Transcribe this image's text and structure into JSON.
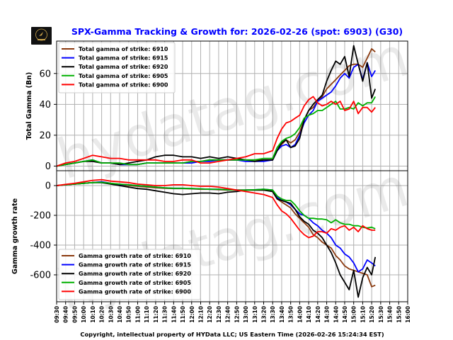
{
  "title": "SPX-Gamma Tracking & Growth for: 2026-02-26 (spot: 6903) (G30)",
  "footer": "Copyright, intellectual property of HYData LLC; US Eastern Time (2026-02-26 15:24:34 EST)",
  "watermark": "hydatag.com",
  "logo_text": "HYDATA",
  "chart_data": [
    {
      "type": "line",
      "ylabel": "Total Gamma (Bn)",
      "ylim": [
        -3,
        81
      ],
      "yticks": [
        0,
        20,
        40,
        60
      ],
      "grid": true,
      "legend_position": "top-left",
      "x": [
        "09:30",
        "09:40",
        "09:50",
        "10:00",
        "10:10",
        "10:20",
        "10:30",
        "10:40",
        "10:50",
        "11:00",
        "11:10",
        "11:20",
        "11:30",
        "11:40",
        "11:50",
        "12:00",
        "12:10",
        "12:20",
        "12:30",
        "12:40",
        "12:50",
        "13:00",
        "13:10",
        "13:20",
        "13:30",
        "13:35",
        "13:40",
        "13:45",
        "13:50",
        "13:55",
        "14:00",
        "14:05",
        "14:10",
        "14:15",
        "14:20",
        "14:25",
        "14:30",
        "14:35",
        "14:40",
        "14:45",
        "14:50",
        "14:55",
        "15:00",
        "15:05",
        "15:10",
        "15:15",
        "15:20",
        "15:24"
      ],
      "series": [
        {
          "name": "Total gamma of strike: 6910",
          "color": "#8B3A0F",
          "values": [
            0,
            1,
            2,
            3,
            4,
            2,
            2,
            1,
            1,
            1,
            2,
            2,
            2,
            2,
            2,
            3,
            3,
            4,
            4,
            4,
            4,
            4,
            4,
            4,
            4,
            12,
            14,
            17,
            15,
            17,
            22,
            30,
            36,
            38,
            42,
            45,
            50,
            53,
            56,
            59,
            62,
            65,
            66,
            66,
            64,
            70,
            76,
            74
          ]
        },
        {
          "name": "Total gamma of strike: 6915",
          "color": "#0000ff",
          "values": [
            0,
            1,
            2,
            3,
            4,
            2,
            2,
            1,
            1,
            1,
            2,
            2,
            2,
            2,
            2,
            2,
            3,
            3,
            4,
            4,
            4,
            3,
            3,
            3,
            4,
            10,
            13,
            14,
            12,
            14,
            20,
            28,
            33,
            36,
            42,
            44,
            46,
            48,
            52,
            57,
            60,
            57,
            64,
            66,
            56,
            67,
            58,
            62
          ]
        },
        {
          "name": "Total gamma of strike: 6920",
          "color": "#000000",
          "values": [
            0,
            1,
            2,
            3,
            3,
            2,
            2,
            1,
            2,
            3,
            4,
            6,
            7,
            7,
            6,
            6,
            5,
            6,
            5,
            6,
            5,
            4,
            3,
            4,
            4,
            10,
            15,
            17,
            12,
            13,
            18,
            30,
            36,
            40,
            43,
            46,
            55,
            62,
            68,
            66,
            71,
            58,
            78,
            66,
            55,
            67,
            44,
            50
          ]
        },
        {
          "name": "Total gamma of strike: 6905",
          "color": "#00b000",
          "values": [
            0,
            1,
            2,
            3,
            4,
            2,
            2,
            2,
            1,
            1,
            2,
            2,
            2,
            2,
            2,
            3,
            3,
            4,
            4,
            4,
            4,
            4,
            4,
            5,
            5,
            12,
            16,
            18,
            19,
            21,
            25,
            31,
            33,
            34,
            36,
            36,
            38,
            40,
            42,
            37,
            37,
            38,
            37,
            41,
            39,
            41,
            41,
            45
          ]
        },
        {
          "name": "Total gamma of strike: 6900",
          "color": "#ff0000",
          "values": [
            0,
            2,
            3,
            5,
            7,
            6,
            5,
            5,
            4,
            4,
            4,
            4,
            3,
            3,
            4,
            4,
            2,
            2,
            3,
            4,
            5,
            6,
            8,
            8,
            10,
            18,
            24,
            28,
            29,
            31,
            33,
            39,
            43,
            45,
            41,
            39,
            40,
            42,
            40,
            42,
            36,
            37,
            42,
            34,
            38,
            38,
            35,
            38
          ]
        }
      ]
    },
    {
      "type": "line",
      "ylabel": "Gamma growth rate",
      "ylim": [
        -781,
        100
      ],
      "yticks": [
        0,
        -200,
        -400,
        -600
      ],
      "grid": true,
      "legend_position": "bottom-left",
      "x": [
        "09:30",
        "09:40",
        "09:50",
        "10:00",
        "10:10",
        "10:20",
        "10:30",
        "10:40",
        "10:50",
        "11:00",
        "11:10",
        "11:20",
        "11:30",
        "11:40",
        "11:50",
        "12:00",
        "12:10",
        "12:20",
        "12:30",
        "12:40",
        "12:50",
        "13:00",
        "13:10",
        "13:20",
        "13:30",
        "13:35",
        "13:40",
        "13:45",
        "13:50",
        "13:55",
        "14:00",
        "14:05",
        "14:10",
        "14:15",
        "14:20",
        "14:25",
        "14:30",
        "14:35",
        "14:40",
        "14:45",
        "14:50",
        "14:55",
        "15:00",
        "15:05",
        "15:10",
        "15:15",
        "15:20",
        "15:24"
      ],
      "xticks": [
        "09:30",
        "09:40",
        "09:50",
        "10:00",
        "10:10",
        "10:20",
        "10:30",
        "10:40",
        "10:50",
        "11:00",
        "11:10",
        "11:20",
        "11:30",
        "11:40",
        "11:50",
        "12:00",
        "12:10",
        "12:20",
        "12:30",
        "12:40",
        "12:50",
        "13:00",
        "13:10",
        "13:20",
        "13:30",
        "13:40",
        "13:50",
        "14:00",
        "14:10",
        "14:20",
        "14:30",
        "14:40",
        "14:50",
        "15:00",
        "15:10",
        "15:20",
        "15:30",
        "15:40",
        "15:50",
        "16:00"
      ],
      "series": [
        {
          "name": "Gamma growth rate of strike: 6910",
          "color": "#8B3A0F",
          "values": [
            0,
            5,
            10,
            15,
            20,
            25,
            15,
            5,
            0,
            -5,
            -10,
            -15,
            -18,
            -20,
            -20,
            -22,
            -25,
            -25,
            -28,
            -30,
            -30,
            -30,
            -30,
            -30,
            -40,
            -90,
            -110,
            -130,
            -150,
            -190,
            -220,
            -250,
            -280,
            -330,
            -350,
            -380,
            -400,
            -420,
            -470,
            -500,
            -540,
            -560,
            -570,
            -580,
            -590,
            -600,
            -680,
            -670
          ]
        },
        {
          "name": "Gamma growth rate of strike: 6915",
          "color": "#0000ff",
          "values": [
            0,
            5,
            10,
            15,
            20,
            25,
            15,
            8,
            5,
            0,
            -5,
            -10,
            -15,
            -18,
            -18,
            -20,
            -22,
            -25,
            -25,
            -28,
            -30,
            -30,
            -28,
            -25,
            -30,
            -80,
            -100,
            -110,
            -130,
            -160,
            -190,
            -200,
            -220,
            -250,
            -270,
            -300,
            -320,
            -350,
            -400,
            -420,
            -460,
            -480,
            -520,
            -580,
            -560,
            -500,
            -520,
            -540
          ]
        },
        {
          "name": "Gamma growth rate of strike: 6920",
          "color": "#000000",
          "values": [
            0,
            5,
            10,
            15,
            20,
            20,
            10,
            0,
            -10,
            -20,
            -25,
            -35,
            -45,
            -55,
            -60,
            -55,
            -50,
            -50,
            -55,
            -45,
            -40,
            -30,
            -30,
            -30,
            -40,
            -90,
            -100,
            -110,
            -120,
            -160,
            -210,
            -240,
            -260,
            -300,
            -320,
            -350,
            -400,
            -450,
            -520,
            -600,
            -650,
            -700,
            -570,
            -750,
            -620,
            -550,
            -600,
            -480
          ]
        },
        {
          "name": "Gamma growth rate of strike: 6905",
          "color": "#00b000",
          "values": [
            0,
            5,
            10,
            15,
            20,
            22,
            15,
            10,
            5,
            0,
            -5,
            -10,
            -15,
            -18,
            -18,
            -20,
            -22,
            -25,
            -25,
            -28,
            -30,
            -30,
            -28,
            -25,
            -30,
            -70,
            -90,
            -100,
            -100,
            -130,
            -170,
            -200,
            -220,
            -220,
            -225,
            -225,
            -230,
            -250,
            -230,
            -250,
            -260,
            -260,
            -270,
            -270,
            -280,
            -285,
            -280,
            -290
          ]
        },
        {
          "name": "Gamma growth rate of strike: 6900",
          "color": "#ff0000",
          "values": [
            0,
            8,
            15,
            25,
            35,
            40,
            30,
            25,
            20,
            10,
            5,
            0,
            0,
            5,
            5,
            0,
            -5,
            -5,
            -10,
            -20,
            -30,
            -40,
            -50,
            -60,
            -80,
            -130,
            -170,
            -190,
            -220,
            -260,
            -300,
            -330,
            -350,
            -340,
            -310,
            -310,
            -320,
            -290,
            -300,
            -280,
            -270,
            -300,
            -280,
            -310,
            -270,
            -290,
            -300,
            -300
          ]
        }
      ]
    }
  ]
}
